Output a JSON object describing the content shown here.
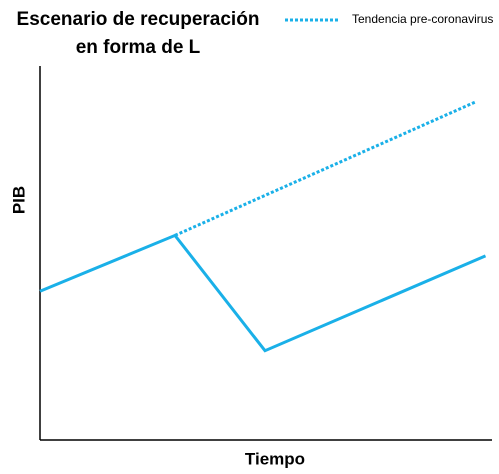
{
  "chart_data": {
    "type": "line",
    "title": "Escenario de recuperación en forma de L",
    "x_label": "Tiempo",
    "y_label": "PIB",
    "xlim": [
      0,
      100
    ],
    "ylim": [
      0,
      100
    ],
    "series": [
      {
        "color": "#1ab0e8",
        "dash": false,
        "x": [
          0,
          30,
          50,
          99
        ],
        "values": [
          40,
          55,
          24,
          49.5
        ]
      },
      {
        "name": "Tendencia pre-coronavirus",
        "color": "#1ab0e8",
        "dash": true,
        "x": [
          30,
          97
        ],
        "values": [
          55,
          91
        ]
      }
    ],
    "legend": "top-right"
  }
}
